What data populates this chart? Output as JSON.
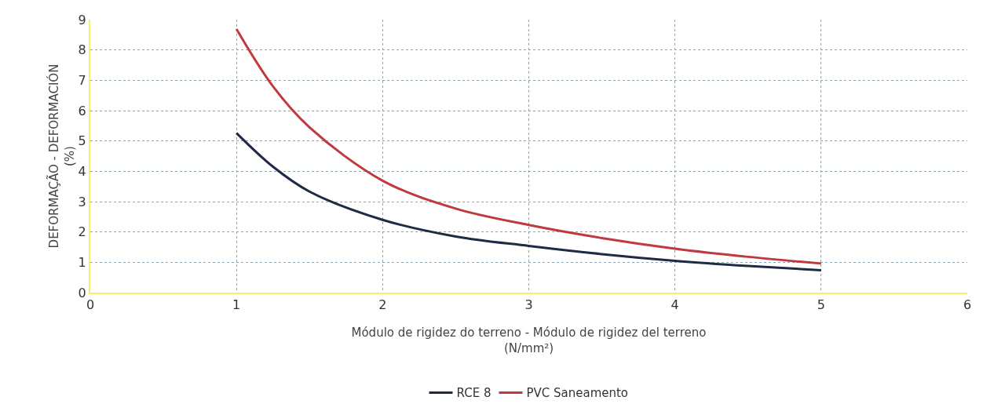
{
  "chart_data": {
    "type": "line",
    "xlabel": "Módulo de rigidez do terreno - Módulo de rigidez del terreno\n(N/mm²)",
    "ylabel": "DEFORMAÇÃO - DEFORMACIÓN\n(%)",
    "x": [
      1,
      1.25,
      1.5,
      2,
      2.5,
      3,
      3.5,
      4,
      4.5,
      5
    ],
    "series": [
      {
        "name": "RCE 8",
        "color": "#1f2a44",
        "values": [
          5.26,
          4.15,
          3.33,
          2.4,
          1.85,
          1.54,
          1.27,
          1.05,
          0.88,
          0.74
        ]
      },
      {
        "name": "PVC Saneamento",
        "color": "#c0393f",
        "values": [
          8.69,
          6.8,
          5.45,
          3.69,
          2.77,
          2.23,
          1.8,
          1.45,
          1.18,
          0.96
        ]
      }
    ],
    "xlim": [
      0,
      6
    ],
    "xticks": [
      0,
      1,
      2,
      3,
      4,
      5,
      6
    ],
    "ylim": [
      0,
      9
    ],
    "yticks": [
      0,
      1,
      2,
      3,
      4,
      5,
      6,
      7,
      8,
      9
    ],
    "grid": true,
    "legend": "bottom",
    "marker": "none",
    "line_style": "solid"
  }
}
